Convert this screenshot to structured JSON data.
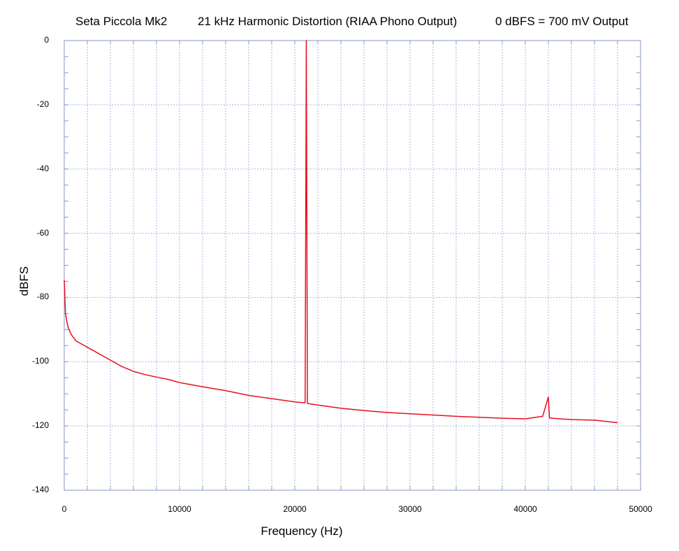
{
  "chart_data": {
    "type": "line",
    "title_parts": [
      "Seta Piccola Mk2",
      "21 kHz Harmonic Distortion (RIAA Phono Output)",
      "0 dBFS = 700 mV Output"
    ],
    "xlabel": "Frequency (Hz)",
    "ylabel": "dBFS",
    "xlim": [
      0,
      50000
    ],
    "ylim": [
      -140,
      0
    ],
    "x_ticks": [
      0,
      10000,
      20000,
      30000,
      40000,
      50000
    ],
    "x_tick_labels": [
      "0",
      "10000",
      "20000",
      "30000",
      "40000",
      "50000"
    ],
    "y_ticks": [
      0,
      -20,
      -40,
      -60,
      -80,
      -100,
      -120,
      -140
    ],
    "y_tick_labels": [
      "0",
      "-20",
      "-40",
      "-60",
      "-80",
      "-100",
      "-120",
      "-140"
    ],
    "grid": true,
    "series_color": "#e8101e",
    "grid_color": "#a9b4e0",
    "series": [
      {
        "x": [
          0,
          100,
          300,
          600,
          1000,
          1500,
          2000,
          2500,
          3000,
          4000,
          5000,
          6000,
          7000,
          8000,
          9000,
          10000,
          12000,
          14000,
          16000,
          18000,
          20000,
          20900,
          21000,
          21100,
          22000,
          24000,
          26000,
          28000,
          30000,
          32000,
          34000,
          36000,
          38000,
          40000,
          41500,
          42000,
          42100,
          43000,
          44000,
          46000,
          48000
        ],
        "y": [
          -74.5,
          -85,
          -89,
          -91.5,
          -93.5,
          -94.5,
          -95.5,
          -96.5,
          -97.5,
          -99.5,
          -101.5,
          -103,
          -104,
          -104.8,
          -105.5,
          -106.5,
          -107.8,
          -109,
          -110.5,
          -111.5,
          -112.5,
          -112.8,
          0,
          -113,
          -113.5,
          -114.5,
          -115.2,
          -115.8,
          -116.2,
          -116.6,
          -117,
          -117.3,
          -117.6,
          -117.8,
          -117,
          -111,
          -117.5,
          -117.8,
          -118,
          -118.2,
          -119
        ]
      }
    ]
  }
}
